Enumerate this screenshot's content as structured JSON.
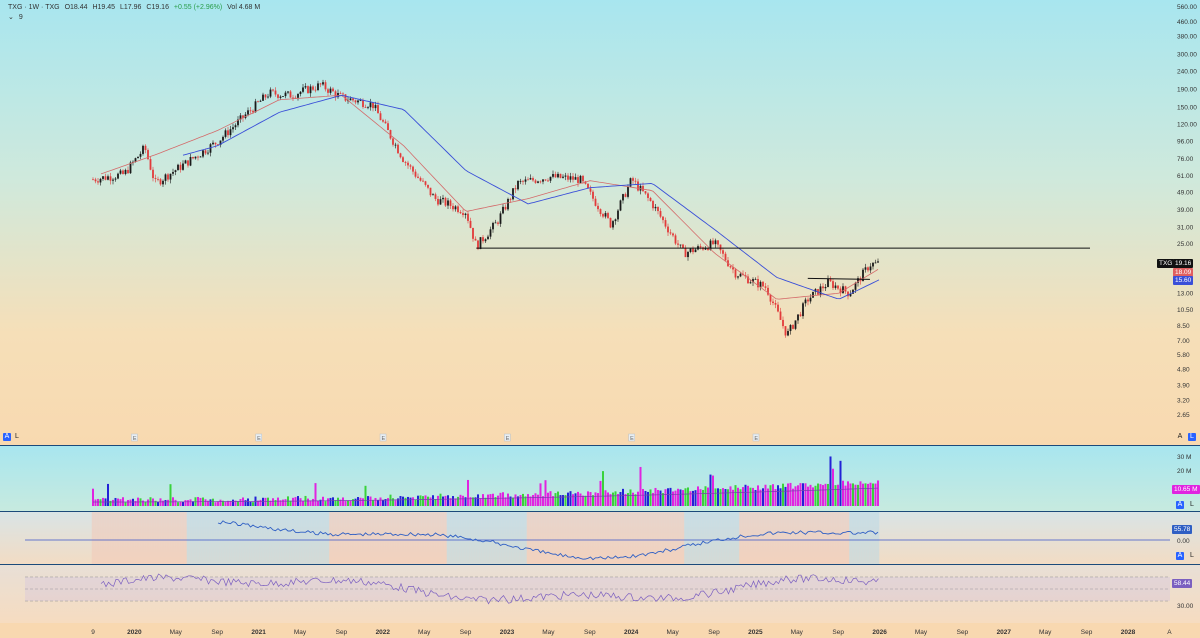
{
  "legend": {
    "symbol": "TXG · 1W · TXG",
    "open": "O18.44",
    "high": "H19.45",
    "low": "L17.96",
    "close": "C19.16",
    "change": "+0.55 (+2.96%)",
    "volume": "Vol 4.68 M",
    "collapse_count": "9"
  },
  "price_tags": {
    "last": "19.16",
    "ma_fast": "18.09",
    "ma_slow": "15.60",
    "symbol": "TXG"
  },
  "volume_tag": "10.65 M",
  "osc_tag": "55.78",
  "rsi_tag": "58.44",
  "pane_buttons": {
    "auto": "A",
    "log": "L"
  },
  "earnings_marker": "E",
  "colors": {
    "up": "#1a1a1a",
    "down": "#e23a3a",
    "ma_fast": "#d46a6a",
    "ma_slow": "#3a4fd8",
    "support_line": "#111111",
    "osc_line": "#2f5fc4",
    "rsi_line": "#7b5fc0",
    "vol_green": "#39d23b",
    "vol_magenta": "#e024e0",
    "vol_blue": "#2222d6"
  },
  "chart_data": [
    {
      "type": "line",
      "title": "TXG weekly candlestick with moving averages (log scale)",
      "ylim": [
        2.1,
        580
      ],
      "y_scale": "log",
      "y_ticks": [
        "560.00",
        "460.00",
        "380.00",
        "300.00",
        "240.00",
        "190.00",
        "150.00",
        "120.00",
        "96.00",
        "76.00",
        "61.00",
        "49.00",
        "39.00",
        "31.00",
        "25.00",
        "19.16",
        "18.09",
        "15.60",
        "13.00",
        "10.50",
        "8.50",
        "7.00",
        "5.80",
        "4.80",
        "3.90",
        "3.20",
        "2.65"
      ],
      "series": [
        {
          "name": "TXG",
          "x": [
            "2019-09",
            "2019-12",
            "2020-02",
            "2020-03",
            "2020-06",
            "2020-09",
            "2020-12",
            "2021-02",
            "2021-04",
            "2021-07",
            "2021-09",
            "2021-12",
            "2022-03",
            "2022-06",
            "2022-09",
            "2022-10",
            "2022-12",
            "2023-02",
            "2023-05",
            "2023-08",
            "2023-11",
            "2024-01",
            "2024-03",
            "2024-06",
            "2024-09",
            "2024-11",
            "2025-02",
            "2025-04",
            "2025-06",
            "2025-08",
            "2025-10",
            "2025-12",
            "2026-01"
          ],
          "values": [
            58,
            62,
            88,
            55,
            72,
            95,
            140,
            180,
            175,
            200,
            170,
            155,
            75,
            45,
            38,
            24,
            33,
            55,
            60,
            58,
            32,
            58,
            42,
            22,
            25,
            17,
            14,
            7.5,
            12,
            15,
            13,
            19,
            19.16
          ]
        }
      ],
      "moving_averages": [
        {
          "name": "MA fast",
          "x": [
            "2019-09",
            "2020-03",
            "2020-09",
            "2021-03",
            "2021-09",
            "2022-03",
            "2022-09",
            "2023-03",
            "2023-09",
            "2024-03",
            "2024-09",
            "2025-03",
            "2025-09",
            "2026-01"
          ],
          "values": [
            60,
            80,
            110,
            165,
            175,
            90,
            38,
            45,
            57,
            50,
            22,
            12,
            13,
            18.09
          ]
        },
        {
          "name": "MA slow",
          "x": [
            "2019-09",
            "2020-03",
            "2020-09",
            "2021-03",
            "2021-09",
            "2022-03",
            "2022-09",
            "2023-03",
            "2023-09",
            "2024-03",
            "2024-09",
            "2025-03",
            "2025-09",
            "2026-01"
          ],
          "values": [
            70,
            72,
            90,
            140,
            175,
            145,
            65,
            42,
            52,
            55,
            30,
            16,
            12,
            15.6
          ]
        }
      ],
      "support_level": 23.5,
      "breakout_level": 15.8
    },
    {
      "type": "bar",
      "title": "Volume",
      "y_ticks": [
        "30 M",
        "20 M"
      ],
      "last_value": "10.65 M"
    },
    {
      "type": "line",
      "title": "Oscillator",
      "y_ticks": [
        "55.78",
        "0.00"
      ],
      "last_value": 55.78
    },
    {
      "type": "line",
      "title": "RSI",
      "y_ticks": [
        "58.44",
        "30.00"
      ],
      "last_value": 58.44
    }
  ],
  "time_axis": [
    "9",
    "2020",
    "May",
    "Sep",
    "2021",
    "May",
    "Sep",
    "2022",
    "May",
    "Sep",
    "2023",
    "May",
    "Sep",
    "2024",
    "May",
    "Sep",
    "2025",
    "May",
    "Sep",
    "2026",
    "May",
    "Sep",
    "2027",
    "May",
    "Sep",
    "2028",
    "A"
  ]
}
